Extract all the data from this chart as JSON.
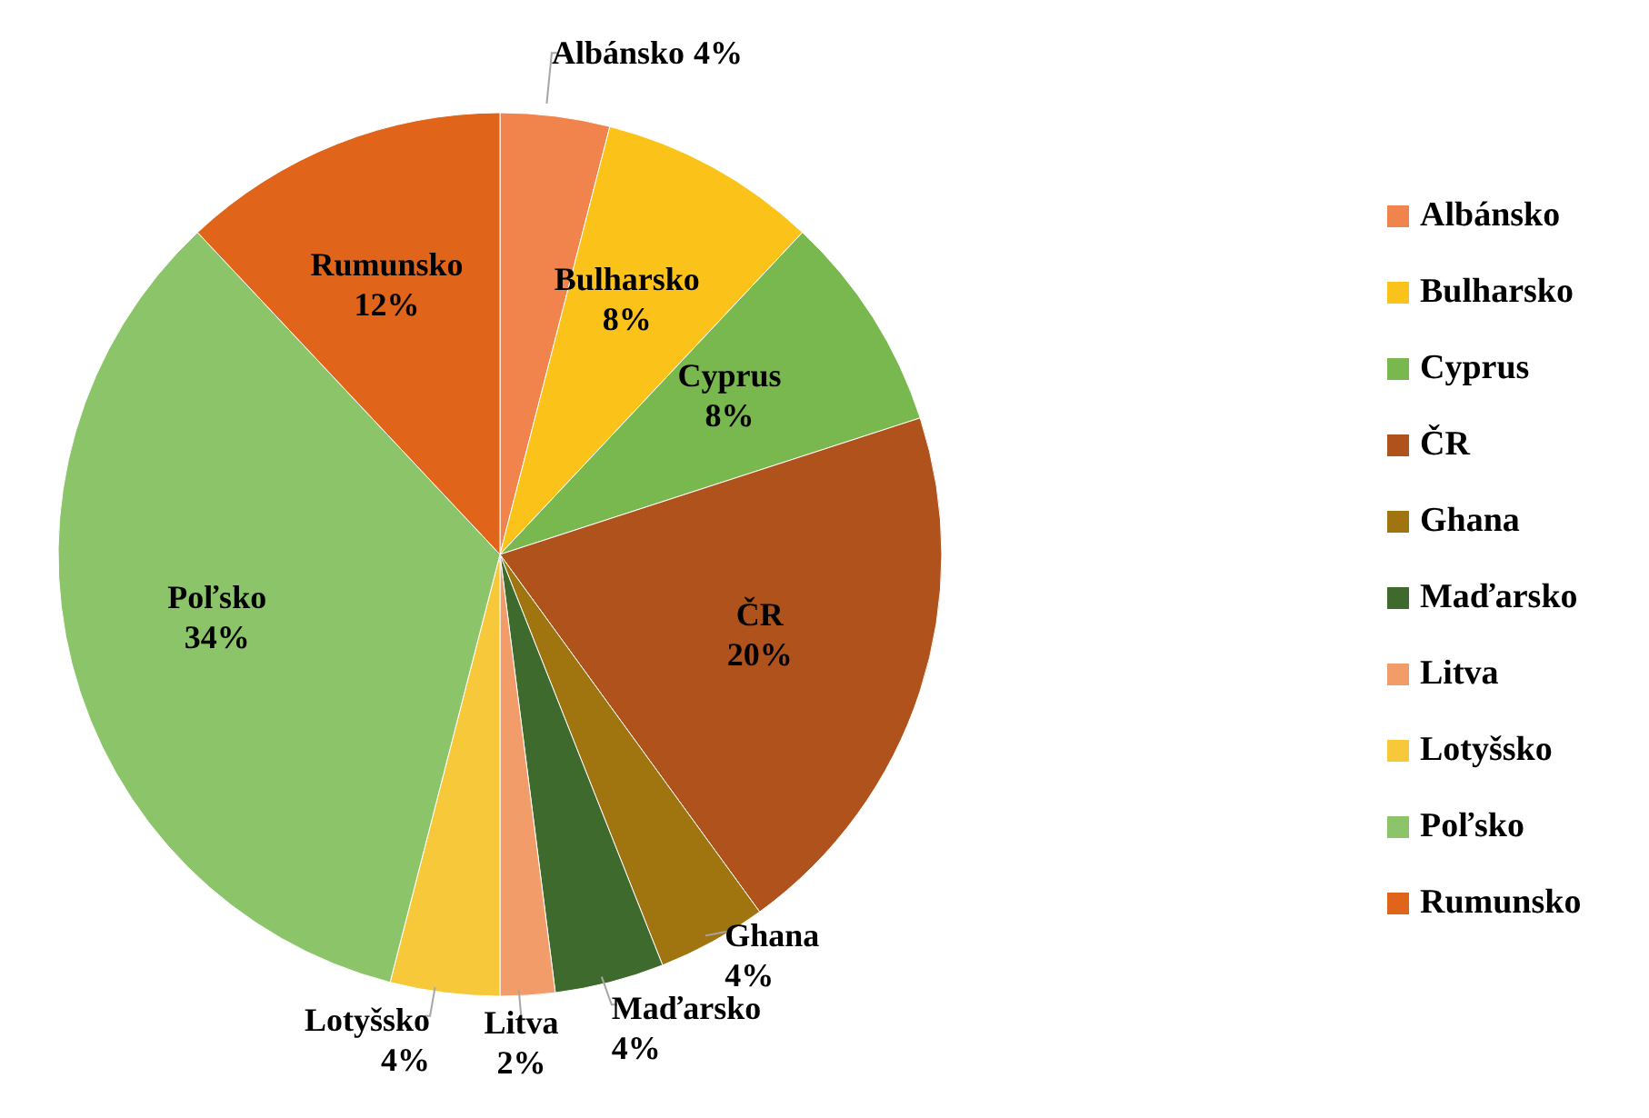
{
  "chart_data": {
    "type": "pie",
    "categories": [
      "Albánsko",
      "Bulharsko",
      "Cyprus",
      "ČR",
      "Ghana",
      "Maďarsko",
      "Litva",
      "Lotyšsko",
      "Poľsko",
      "Rumunsko"
    ],
    "values": [
      4,
      8,
      8,
      20,
      4,
      4,
      2,
      4,
      34,
      12
    ],
    "colors": [
      "#f0844c",
      "#fbc21a",
      "#79b84e",
      "#b0521c",
      "#a07510",
      "#3e6a2e",
      "#f29c6a",
      "#f7c93a",
      "#8cc46a",
      "#e0641a"
    ],
    "value_labels": [
      "4%",
      "8%",
      "8%",
      "20%",
      "4%",
      "4%",
      "2%",
      "4%",
      "34%",
      "12%"
    ],
    "legend": "right"
  }
}
